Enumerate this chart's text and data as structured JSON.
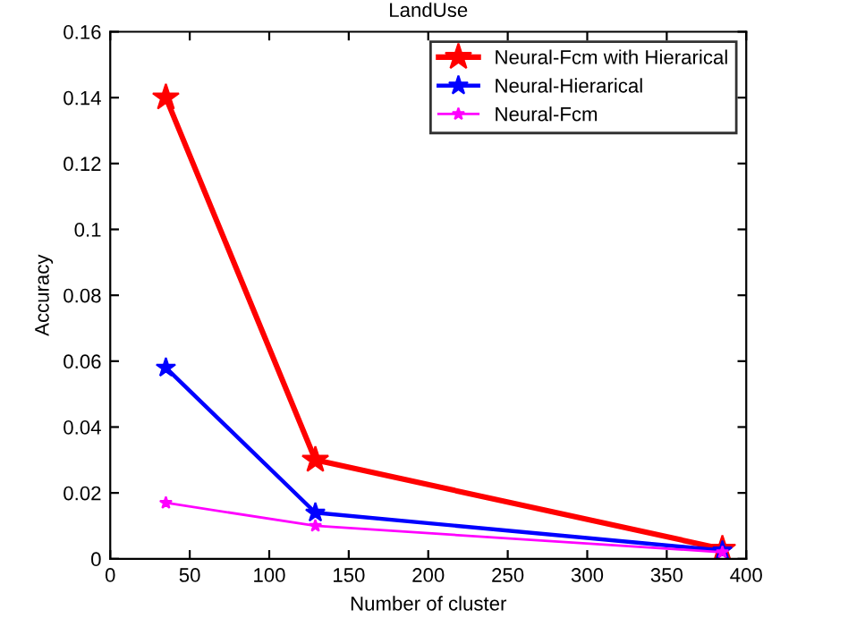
{
  "chart_data": {
    "type": "line",
    "title": "LandUse",
    "xlabel": "Number of cluster",
    "ylabel": "Accuracy",
    "x": [
      35,
      129,
      385
    ],
    "series": [
      {
        "name": "Neural-Fcm with Hierarical",
        "color": "#ff0000",
        "values": [
          0.14,
          0.03,
          0.003
        ]
      },
      {
        "name": "Neural-Hierarical",
        "color": "#0000ff",
        "values": [
          0.058,
          0.014,
          0.0025
        ]
      },
      {
        "name": "Neural-Fcm",
        "color": "#ff00ff",
        "values": [
          0.017,
          0.01,
          0.002
        ]
      }
    ],
    "xlim": [
      0,
      400
    ],
    "xticks": [
      0,
      50,
      100,
      150,
      200,
      250,
      300,
      350,
      400
    ],
    "ylim": [
      0,
      0.16
    ],
    "yticks": [
      0,
      0.02,
      0.04,
      0.06,
      0.08,
      0.1,
      0.12,
      0.14,
      0.16
    ],
    "grid": false,
    "legend": "top right",
    "marker": "star",
    "line_style": "solid"
  }
}
